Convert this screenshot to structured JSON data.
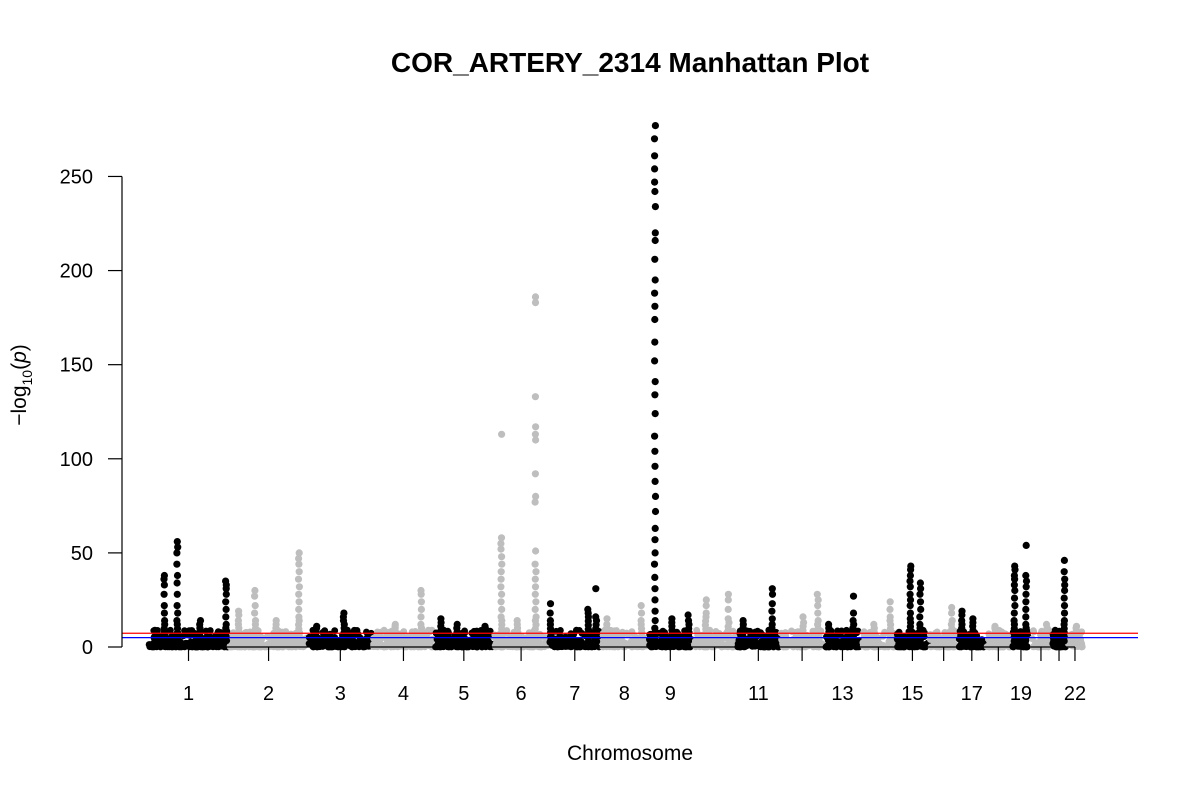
{
  "chart_data": {
    "type": "scatter",
    "title": "COR_ARTERY_2314 Manhattan Plot",
    "xlabel": "Chromosome",
    "ylabel_prefix": "−log",
    "ylabel_sub": "10",
    "ylabel_var": "p",
    "ylim": [
      0,
      280
    ],
    "yticks": [
      0,
      50,
      100,
      150,
      200,
      250
    ],
    "xlim": [
      0,
      2950
    ],
    "grid": false,
    "legend": "none",
    "colors": {
      "odd": "#000000",
      "even": "#bebebe",
      "suggestive_line": "#0000ff",
      "genomewide_line": "#ff0000"
    },
    "thresholds": {
      "suggestive": 5,
      "genomewide": 7.3
    },
    "chromosomes": [
      {
        "chr": 1,
        "start": 0,
        "end": 249
      },
      {
        "chr": 2,
        "start": 249,
        "end": 492
      },
      {
        "chr": 3,
        "start": 492,
        "end": 690
      },
      {
        "chr": 4,
        "start": 690,
        "end": 880
      },
      {
        "chr": 5,
        "start": 880,
        "end": 1061
      },
      {
        "chr": 6,
        "start": 1061,
        "end": 1232
      },
      {
        "chr": 7,
        "start": 1232,
        "end": 1391
      },
      {
        "chr": 8,
        "start": 1391,
        "end": 1536
      },
      {
        "chr": 9,
        "start": 1536,
        "end": 1674
      },
      {
        "chr": 10,
        "start": 1674,
        "end": 1808
      },
      {
        "chr": 11,
        "start": 1808,
        "end": 1943
      },
      {
        "chr": 12,
        "start": 1943,
        "end": 2077
      },
      {
        "chr": 13,
        "start": 2077,
        "end": 2191
      },
      {
        "chr": 14,
        "start": 2191,
        "end": 2298
      },
      {
        "chr": 15,
        "start": 2298,
        "end": 2400
      },
      {
        "chr": 16,
        "start": 2400,
        "end": 2490
      },
      {
        "chr": 17,
        "start": 2490,
        "end": 2573
      },
      {
        "chr": 18,
        "start": 2573,
        "end": 2653
      },
      {
        "chr": 19,
        "start": 2653,
        "end": 2712
      },
      {
        "chr": 20,
        "start": 2712,
        "end": 2776
      },
      {
        "chr": 21,
        "start": 2776,
        "end": 2823
      },
      {
        "chr": 22,
        "start": 2823,
        "end": 2874
      }
    ],
    "x_tick_labels": [
      "1",
      "2",
      "3",
      "4",
      "5",
      "6",
      "7",
      "8",
      "9",
      "11",
      "13",
      "15",
      "17",
      "19",
      "22"
    ],
    "peaks": [
      {
        "chr": 1,
        "pos": 90,
        "values": [
          56,
          53,
          50,
          44,
          38,
          34,
          28,
          22,
          18,
          14
        ]
      },
      {
        "chr": 1,
        "pos": 50,
        "values": [
          38,
          36,
          33,
          28,
          22,
          18,
          14
        ]
      },
      {
        "chr": 1,
        "pos": 240,
        "values": [
          35,
          33,
          31,
          28,
          24,
          20,
          16,
          12
        ]
      },
      {
        "chr": 1,
        "pos": 160,
        "values": [
          14,
          12,
          10
        ]
      },
      {
        "chr": 2,
        "pos": 30,
        "values": [
          19,
          17,
          14,
          12
        ]
      },
      {
        "chr": 2,
        "pos": 80,
        "values": [
          30,
          27,
          22,
          18,
          14
        ]
      },
      {
        "chr": 2,
        "pos": 145,
        "values": [
          14,
          12,
          10
        ]
      },
      {
        "chr": 2,
        "pos": 215,
        "values": [
          50,
          47,
          44,
          40,
          36,
          32,
          28,
          24,
          20,
          16
        ]
      },
      {
        "chr": 3,
        "pos": 110,
        "values": [
          18,
          16,
          14,
          12
        ]
      },
      {
        "chr": 3,
        "pos": 25,
        "values": [
          11,
          10
        ]
      },
      {
        "chr": 4,
        "pos": 70,
        "values": [
          12,
          11,
          10
        ]
      },
      {
        "chr": 4,
        "pos": 150,
        "values": [
          30,
          28,
          24,
          20,
          16,
          12
        ]
      },
      {
        "chr": 5,
        "pos": 20,
        "values": [
          15,
          13,
          11
        ]
      },
      {
        "chr": 5,
        "pos": 70,
        "values": [
          12,
          10
        ]
      },
      {
        "chr": 5,
        "pos": 155,
        "values": [
          11,
          10
        ]
      },
      {
        "chr": 6,
        "pos": 25,
        "values": [
          113,
          58,
          55,
          52,
          48,
          44,
          40,
          36,
          32,
          28,
          24,
          20,
          16
        ]
      },
      {
        "chr": 6,
        "pos": 130,
        "values": [
          186,
          183,
          133,
          117,
          113,
          110,
          92,
          80,
          77,
          51,
          44,
          40,
          36,
          32,
          28,
          24,
          20,
          16
        ]
      },
      {
        "chr": 6,
        "pos": 75,
        "values": [
          14,
          12
        ]
      },
      {
        "chr": 7,
        "pos": 5,
        "values": [
          23,
          18,
          14
        ]
      },
      {
        "chr": 7,
        "pos": 120,
        "values": [
          20,
          18
        ]
      },
      {
        "chr": 7,
        "pos": 145,
        "values": [
          31,
          16
        ]
      },
      {
        "chr": 8,
        "pos": 20,
        "values": [
          15,
          12
        ]
      },
      {
        "chr": 8,
        "pos": 125,
        "values": [
          22,
          18,
          14
        ]
      },
      {
        "chr": 9,
        "pos": 22,
        "values": [
          277,
          270,
          261,
          254,
          247,
          242,
          234,
          220,
          216,
          206,
          195,
          188,
          181,
          174,
          162,
          152,
          141,
          134,
          124,
          112,
          104,
          96,
          88,
          80,
          72,
          63,
          57,
          50,
          44,
          37,
          31,
          25,
          19,
          14,
          10
        ]
      },
      {
        "chr": 9,
        "pos": 75,
        "values": [
          15,
          13,
          11
        ]
      },
      {
        "chr": 9,
        "pos": 125,
        "values": [
          17,
          14
        ]
      },
      {
        "chr": 10,
        "pos": 40,
        "values": [
          25,
          22,
          18
        ]
      },
      {
        "chr": 10,
        "pos": 110,
        "values": [
          28,
          25,
          20,
          15
        ]
      },
      {
        "chr": 11,
        "pos": 20,
        "values": [
          14,
          12,
          10
        ]
      },
      {
        "chr": 11,
        "pos": 110,
        "values": [
          31,
          28,
          23,
          19,
          15,
          12
        ]
      },
      {
        "chr": 12,
        "pos": 70,
        "values": [
          16,
          13
        ]
      },
      {
        "chr": 12,
        "pos": 115,
        "values": [
          28,
          25,
          22,
          18,
          14
        ]
      },
      {
        "chr": 13,
        "pos": 15,
        "values": [
          12,
          10
        ]
      },
      {
        "chr": 13,
        "pos": 90,
        "values": [
          27,
          18,
          14,
          12
        ]
      },
      {
        "chr": 14,
        "pos": 40,
        "values": [
          12,
          10
        ]
      },
      {
        "chr": 14,
        "pos": 90,
        "values": [
          24,
          20,
          16
        ]
      },
      {
        "chr": 15,
        "pos": 45,
        "values": [
          43,
          41,
          38,
          35,
          32,
          28,
          25,
          22,
          18,
          15
        ]
      },
      {
        "chr": 15,
        "pos": 75,
        "values": [
          34,
          31,
          28,
          24,
          20,
          16,
          12
        ]
      },
      {
        "chr": 16,
        "pos": 70,
        "values": [
          21,
          18,
          14
        ]
      },
      {
        "chr": 17,
        "pos": 10,
        "values": [
          19,
          17,
          14,
          12
        ]
      },
      {
        "chr": 17,
        "pos": 45,
        "values": [
          15,
          13
        ]
      },
      {
        "chr": 18,
        "pos": 30,
        "values": [
          11,
          10
        ]
      },
      {
        "chr": 19,
        "pos": 10,
        "values": [
          43,
          41,
          38,
          36,
          33,
          30,
          26,
          22,
          18,
          14
        ]
      },
      {
        "chr": 19,
        "pos": 45,
        "values": [
          54,
          38,
          35,
          32,
          28,
          24,
          20,
          16,
          12
        ]
      },
      {
        "chr": 20,
        "pos": 50,
        "values": [
          12,
          10
        ]
      },
      {
        "chr": 21,
        "pos": 40,
        "values": [
          46,
          40,
          36,
          33,
          30,
          26,
          22,
          18,
          14
        ]
      },
      {
        "chr": 22,
        "pos": 30,
        "values": [
          11,
          10
        ]
      }
    ]
  }
}
